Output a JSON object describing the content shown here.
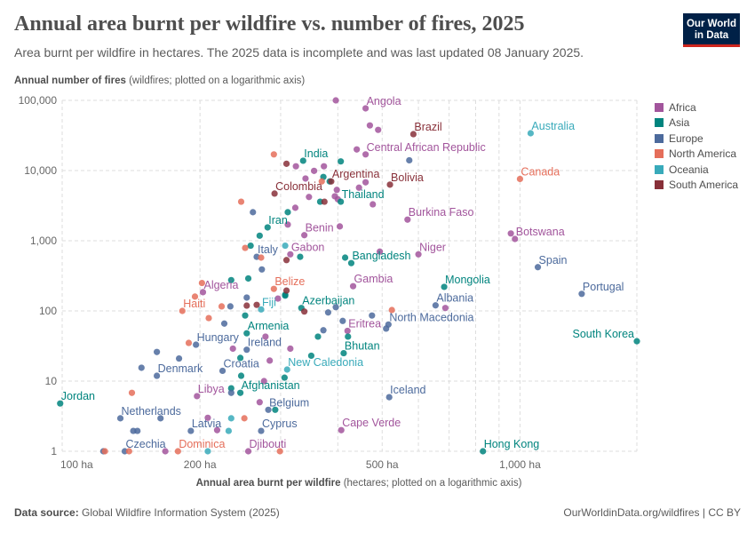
{
  "header": {
    "title": "Annual area burnt per wildfire vs. number of fires, 2025",
    "subtitle": "Area burnt per wildfire in hectares. The 2025 data is incomplete and was last updated 08 January 2025.",
    "logo_line1": "Our World",
    "logo_line2": "in Data"
  },
  "footer": {
    "source_label": "Data source:",
    "source": "Global Wildfire Information System (2025)",
    "link": "OurWorldinData.org/wildfires | CC BY"
  },
  "chart_data": {
    "type": "scatter",
    "title": "Annual area burnt per wildfire vs. number of fires, 2025",
    "ylabel_bold": "Annual number of fires",
    "ylabel_rest": " (wildfires; plotted on a logarithmic axis)",
    "xlabel_bold": "Annual area burnt per wildfire",
    "xlabel_rest": " (hectares; plotted on a logarithmic axis)",
    "x_scale": "log",
    "y_scale": "log",
    "xlim": [
      100,
      1800
    ],
    "ylim": [
      1,
      100000
    ],
    "grid": true,
    "legend_position": "right",
    "x_ticks": [
      {
        "value": 100,
        "label": "100 ha"
      },
      {
        "value": 200,
        "label": "200 ha"
      },
      {
        "value": 500,
        "label": "500 ha"
      },
      {
        "value": 1000,
        "label": "1,000 ha"
      }
    ],
    "x_gridlines": [
      100,
      200,
      300,
      400,
      500,
      600,
      700,
      800,
      900,
      1000
    ],
    "y_ticks": [
      {
        "value": 1,
        "label": "1"
      },
      {
        "value": 10,
        "label": "10"
      },
      {
        "value": 100,
        "label": "100"
      },
      {
        "value": 1000,
        "label": "1,000"
      },
      {
        "value": 10000,
        "label": "10,000"
      },
      {
        "value": 100000,
        "label": "100,000"
      }
    ],
    "series": [
      {
        "name": "Africa",
        "color": "#a2559c",
        "points": [
          {
            "x": 460,
            "y": 77000,
            "label": "Angola"
          },
          {
            "x": 396,
            "y": 100000
          },
          {
            "x": 470,
            "y": 44000
          },
          {
            "x": 490,
            "y": 38000
          },
          {
            "x": 460,
            "y": 17000,
            "label": "Central African Republic"
          },
          {
            "x": 440,
            "y": 20000
          },
          {
            "x": 975,
            "y": 1060,
            "label": "Botswana"
          },
          {
            "x": 955,
            "y": 1270
          },
          {
            "x": 568,
            "y": 2000,
            "label": "Burkina Faso"
          },
          {
            "x": 600,
            "y": 640,
            "label": "Niger"
          },
          {
            "x": 432,
            "y": 225,
            "label": "Gambia"
          },
          {
            "x": 420,
            "y": 52,
            "label": "Eritrea"
          },
          {
            "x": 338,
            "y": 1200,
            "label": "Benin"
          },
          {
            "x": 404,
            "y": 1600
          },
          {
            "x": 315,
            "y": 640,
            "label": "Gabon"
          },
          {
            "x": 203,
            "y": 185,
            "label": "Algeria"
          },
          {
            "x": 197,
            "y": 6.1,
            "label": "Libya"
          },
          {
            "x": 407,
            "y": 2,
            "label": "Cape Verde"
          },
          {
            "x": 255,
            "y": 1,
            "label": "Djibouti"
          },
          {
            "x": 687,
            "y": 110
          },
          {
            "x": 324,
            "y": 11500
          },
          {
            "x": 340,
            "y": 7700
          },
          {
            "x": 355,
            "y": 9900
          },
          {
            "x": 373,
            "y": 11500
          },
          {
            "x": 398,
            "y": 5300
          },
          {
            "x": 346,
            "y": 4200
          },
          {
            "x": 394,
            "y": 4300
          },
          {
            "x": 400,
            "y": 3900
          },
          {
            "x": 445,
            "y": 5700
          },
          {
            "x": 460,
            "y": 6800
          },
          {
            "x": 477,
            "y": 3300
          },
          {
            "x": 323,
            "y": 2950
          },
          {
            "x": 311,
            "y": 1700
          },
          {
            "x": 296,
            "y": 150
          },
          {
            "x": 278,
            "y": 43
          },
          {
            "x": 315,
            "y": 29
          },
          {
            "x": 284,
            "y": 19.6
          },
          {
            "x": 270,
            "y": 5
          },
          {
            "x": 494,
            "y": 700
          },
          {
            "x": 236,
            "y": 29
          },
          {
            "x": 208,
            "y": 3
          },
          {
            "x": 218,
            "y": 2
          },
          {
            "x": 168,
            "y": 1
          },
          {
            "x": 276,
            "y": 10
          }
        ]
      },
      {
        "name": "Asia",
        "color": "#00847e",
        "points": [
          {
            "x": 336,
            "y": 13800,
            "label": "India"
          },
          {
            "x": 406,
            "y": 13500
          },
          {
            "x": 406,
            "y": 3600,
            "label": "Thailand"
          },
          {
            "x": 366,
            "y": 3600
          },
          {
            "x": 372,
            "y": 8100
          },
          {
            "x": 384,
            "y": 7000
          },
          {
            "x": 311,
            "y": 2550
          },
          {
            "x": 281,
            "y": 1550,
            "label": "Iran"
          },
          {
            "x": 270,
            "y": 1180
          },
          {
            "x": 258,
            "y": 850
          },
          {
            "x": 415,
            "y": 575
          },
          {
            "x": 428,
            "y": 480,
            "label": "Bangladesh"
          },
          {
            "x": 683,
            "y": 220,
            "label": "Mongolia"
          },
          {
            "x": 333,
            "y": 110,
            "label": "Azerbaijan"
          },
          {
            "x": 331,
            "y": 590
          },
          {
            "x": 307,
            "y": 170
          },
          {
            "x": 362,
            "y": 43
          },
          {
            "x": 350,
            "y": 23
          },
          {
            "x": 421,
            "y": 43
          },
          {
            "x": 412,
            "y": 25,
            "label": "Bhutan"
          },
          {
            "x": 306,
            "y": 11.2
          },
          {
            "x": 234,
            "y": 275
          },
          {
            "x": 255,
            "y": 290
          },
          {
            "x": 307,
            "y": 165
          },
          {
            "x": 251,
            "y": 86
          },
          {
            "x": 253,
            "y": 48,
            "label": "Armenia"
          },
          {
            "x": 245,
            "y": 21.4
          },
          {
            "x": 246,
            "y": 11.9
          },
          {
            "x": 234,
            "y": 7.9
          },
          {
            "x": 245,
            "y": 6.8,
            "label": "Afghanistan"
          },
          {
            "x": 292,
            "y": 3.9
          },
          {
            "x": 99,
            "y": 4.8,
            "label": "Jordan"
          },
          {
            "x": 830,
            "y": 1,
            "label": "Hong Kong"
          },
          {
            "x": 1800,
            "y": 37,
            "label": "South Korea"
          }
        ]
      },
      {
        "name": "Europe",
        "color": "#4c6a9c",
        "points": [
          {
            "x": 1094,
            "y": 420,
            "label": "Spain"
          },
          {
            "x": 1364,
            "y": 175,
            "label": "Portugal"
          },
          {
            "x": 516,
            "y": 64,
            "label": "North Macedonia"
          },
          {
            "x": 510,
            "y": 56
          },
          {
            "x": 475,
            "y": 86
          },
          {
            "x": 410,
            "y": 72
          },
          {
            "x": 381,
            "y": 95
          },
          {
            "x": 396,
            "y": 113
          },
          {
            "x": 372,
            "y": 53
          },
          {
            "x": 518,
            "y": 5.9,
            "label": "Iceland"
          },
          {
            "x": 573,
            "y": 14000
          },
          {
            "x": 261,
            "y": 2550
          },
          {
            "x": 266,
            "y": 590,
            "label": "Italy"
          },
          {
            "x": 273,
            "y": 390
          },
          {
            "x": 282,
            "y": 3.9,
            "label": "Belgium"
          },
          {
            "x": 272,
            "y": 1.95,
            "label": "Cyprus"
          },
          {
            "x": 253,
            "y": 155
          },
          {
            "x": 233,
            "y": 116
          },
          {
            "x": 226,
            "y": 66
          },
          {
            "x": 196,
            "y": 33,
            "label": "Hungary"
          },
          {
            "x": 253,
            "y": 28,
            "label": "Ireland"
          },
          {
            "x": 180,
            "y": 21
          },
          {
            "x": 161,
            "y": 26
          },
          {
            "x": 149,
            "y": 15.5
          },
          {
            "x": 161,
            "y": 11.9,
            "label": "Denmark"
          },
          {
            "x": 224,
            "y": 14,
            "label": "Croatia"
          },
          {
            "x": 234,
            "y": 6.8
          },
          {
            "x": 134,
            "y": 2.95,
            "label": "Netherlands"
          },
          {
            "x": 164,
            "y": 2.95
          },
          {
            "x": 143,
            "y": 1.95
          },
          {
            "x": 146,
            "y": 1.95
          },
          {
            "x": 191,
            "y": 1.95,
            "label": "Latvia"
          },
          {
            "x": 123,
            "y": 1
          },
          {
            "x": 137,
            "y": 1,
            "label": "Czechia"
          },
          {
            "x": 654,
            "y": 120,
            "label": "Albania"
          }
        ]
      },
      {
        "name": "North America",
        "color": "#e56e5a",
        "points": [
          {
            "x": 1000,
            "y": 7600,
            "label": "Canada"
          },
          {
            "x": 290,
            "y": 206,
            "label": "Belize"
          },
          {
            "x": 183,
            "y": 100,
            "label": "Haiti"
          },
          {
            "x": 179,
            "y": 1,
            "label": "Dominica"
          },
          {
            "x": 202,
            "y": 250
          },
          {
            "x": 195,
            "y": 160
          },
          {
            "x": 223,
            "y": 116
          },
          {
            "x": 209,
            "y": 79
          },
          {
            "x": 189,
            "y": 35
          },
          {
            "x": 142,
            "y": 6.8
          },
          {
            "x": 250,
            "y": 2.95
          },
          {
            "x": 124,
            "y": 1
          },
          {
            "x": 140,
            "y": 1
          },
          {
            "x": 299,
            "y": 1
          },
          {
            "x": 272,
            "y": 575
          },
          {
            "x": 525,
            "y": 103
          },
          {
            "x": 290,
            "y": 17000
          },
          {
            "x": 246,
            "y": 3600
          },
          {
            "x": 251,
            "y": 790
          },
          {
            "x": 369,
            "y": 7000
          }
        ]
      },
      {
        "name": "Oceania",
        "color": "#38aaba",
        "points": [
          {
            "x": 1055,
            "y": 34000,
            "label": "Australia"
          },
          {
            "x": 310,
            "y": 14.6,
            "label": "New Caledonia"
          },
          {
            "x": 272,
            "y": 105,
            "label": "Fiji"
          },
          {
            "x": 307,
            "y": 850
          },
          {
            "x": 234,
            "y": 2.95
          },
          {
            "x": 231,
            "y": 1.95
          },
          {
            "x": 208,
            "y": 1
          }
        ]
      },
      {
        "name": "South America",
        "color": "#883039",
        "points": [
          {
            "x": 585,
            "y": 33000,
            "label": "Brazil"
          },
          {
            "x": 520,
            "y": 6300,
            "label": "Bolivia"
          },
          {
            "x": 387,
            "y": 7000,
            "label": "Argentina"
          },
          {
            "x": 291,
            "y": 4700,
            "label": "Colombia"
          },
          {
            "x": 309,
            "y": 12500
          },
          {
            "x": 374,
            "y": 3600
          },
          {
            "x": 309,
            "y": 530
          },
          {
            "x": 309,
            "y": 195
          },
          {
            "x": 338,
            "y": 98
          },
          {
            "x": 253,
            "y": 119
          },
          {
            "x": 266,
            "y": 122
          }
        ]
      }
    ]
  }
}
